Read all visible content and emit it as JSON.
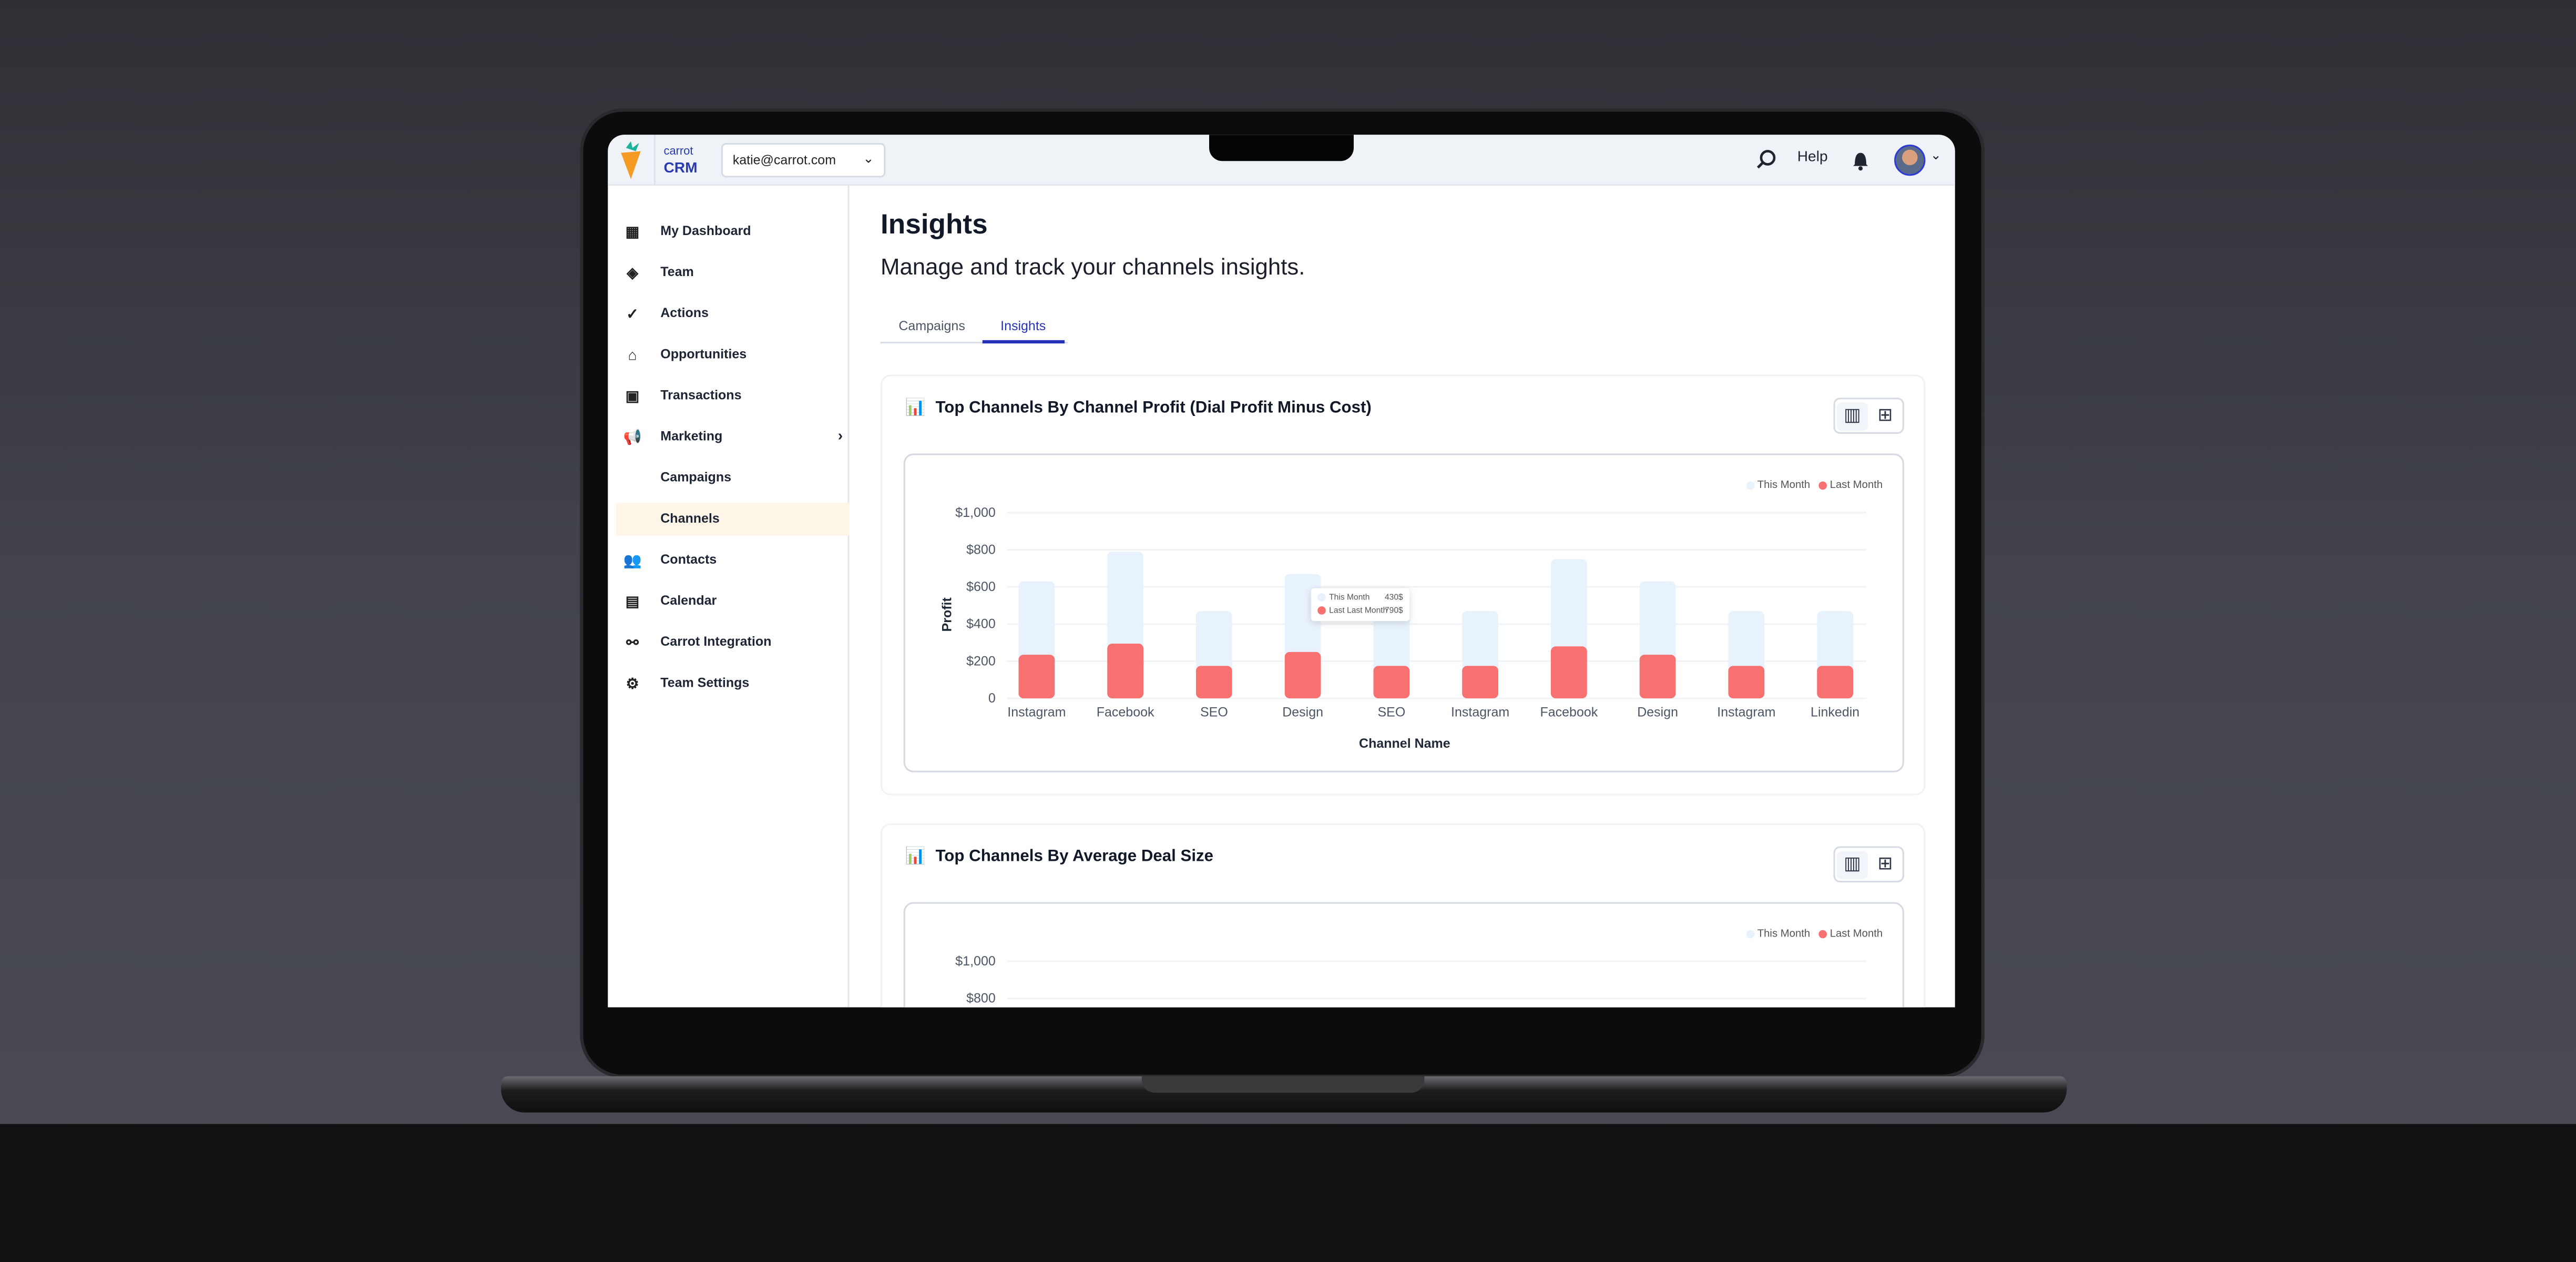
{
  "topbar": {
    "brand_small": "carrot",
    "brand_big": "CRM",
    "account": "katie@carrot.com",
    "help": "Help",
    "icons": [
      "search-icon",
      "bell-icon",
      "avatar",
      "chevron-down-icon"
    ]
  },
  "sidebar": {
    "items": [
      {
        "label": "My Dashboard",
        "icon": "grid-icon"
      },
      {
        "label": "Team",
        "icon": "layers-icon"
      },
      {
        "label": "Actions",
        "icon": "check-circle-icon"
      },
      {
        "label": "Opportunities",
        "icon": "home-icon"
      },
      {
        "label": "Transactions",
        "icon": "money-icon"
      },
      {
        "label": "Marketing",
        "icon": "megaphone-icon"
      },
      {
        "label": "Campaigns"
      },
      {
        "label": "Channels",
        "active": true
      },
      {
        "label": "Contacts",
        "icon": "users-icon"
      },
      {
        "label": "Calendar",
        "icon": "calendar-icon"
      },
      {
        "label": "Carrot Integration",
        "icon": "integration-icon"
      },
      {
        "label": "Team Settings",
        "icon": "gear-icon"
      }
    ]
  },
  "page": {
    "title": "Insights",
    "subtitle": "Manage and track your channels insights.",
    "tabs": [
      {
        "label": "Campaigns"
      },
      {
        "label": "Insights",
        "active": true
      }
    ]
  },
  "colors": {
    "accent": "#2633b8",
    "this_month": "#e8f2fd",
    "last_month": "#f87171"
  },
  "cards": [
    {
      "title": "Top Channels By Channel Profit (Dial Profit Minus Cost)",
      "tooltip": {
        "rows": [
          {
            "label": "This Month",
            "value": "430$"
          },
          {
            "label": "Last Last Month",
            "value": "790$"
          }
        ]
      }
    },
    {
      "title": "Top Channels By Average Deal Size"
    }
  ],
  "chart_data": [
    {
      "type": "bar",
      "title": "",
      "xlabel": "Channel Name",
      "ylabel": "Profit",
      "ylim": [
        0,
        1000
      ],
      "yticks": [
        "0",
        "$200",
        "$400",
        "$600",
        "$800",
        "$1,000"
      ],
      "categories": [
        "Instagram",
        "Facebook",
        "SEO",
        "Design",
        "SEO",
        "Instagram",
        "Facebook",
        "Design",
        "Instagram",
        "Linkedin"
      ],
      "series": [
        {
          "name": "This Month",
          "values": [
            630,
            790,
            470,
            670,
            470,
            470,
            750,
            630,
            470,
            470
          ]
        },
        {
          "name": "Last Month",
          "values": [
            235,
            295,
            175,
            250,
            175,
            175,
            280,
            235,
            175,
            175
          ]
        }
      ],
      "legend": "top-right",
      "grid": true
    },
    {
      "type": "bar",
      "title": "",
      "ylim": [
        0,
        1000
      ],
      "yticks": [
        "$800",
        "$1,000"
      ],
      "series": [
        {
          "name": "This Month"
        },
        {
          "name": "Last Month"
        }
      ],
      "legend": "top-right",
      "grid": true
    }
  ]
}
